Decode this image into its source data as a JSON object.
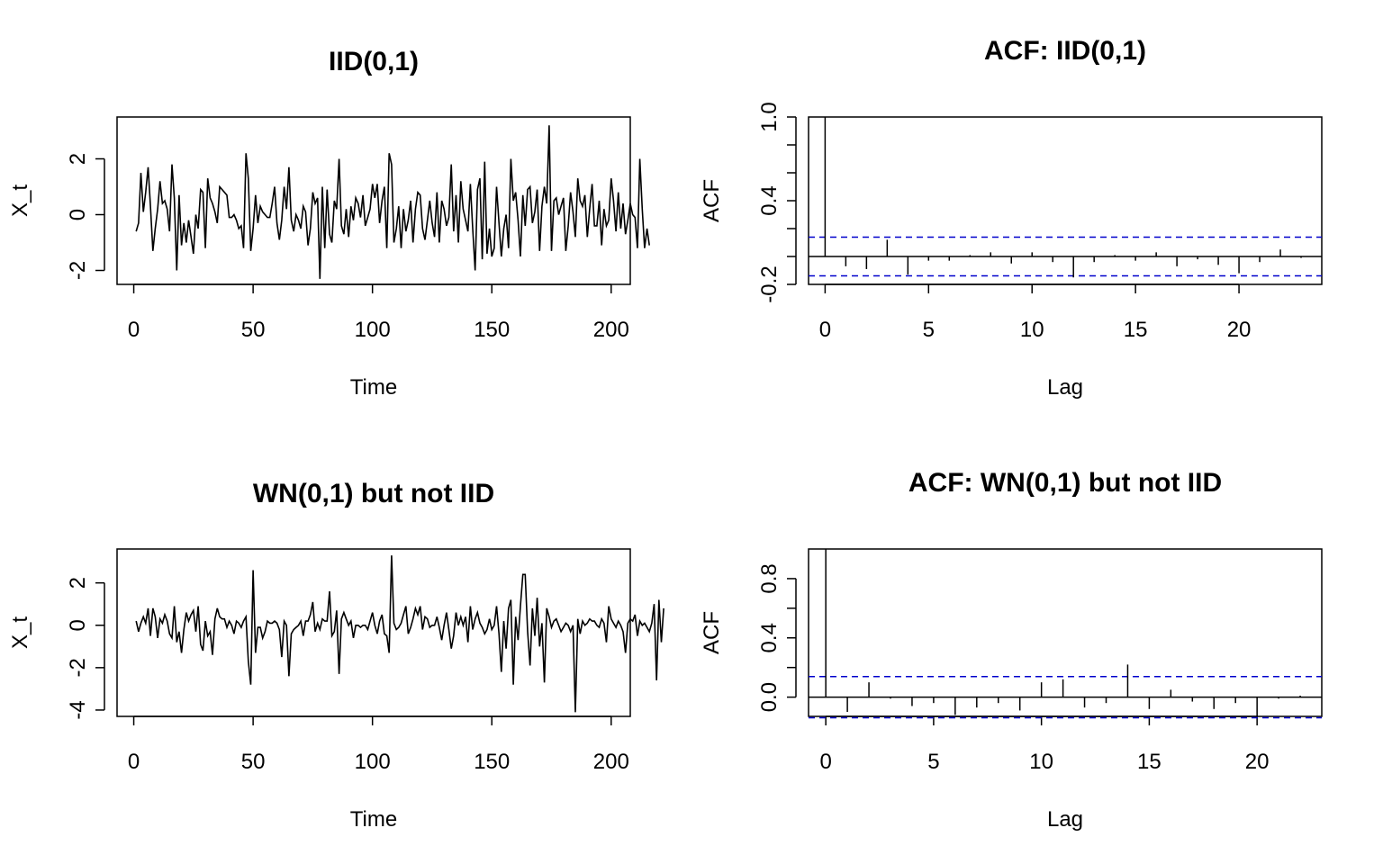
{
  "chart_data": [
    {
      "type": "line",
      "title": "IID(0,1)",
      "xlabel": "Time",
      "ylabel": "X_t",
      "xlim": [
        -7,
        208
      ],
      "ylim": [
        -2.5,
        3.5
      ],
      "xticks": [
        0,
        50,
        100,
        150,
        200
      ],
      "yticks": [
        -2,
        0,
        2
      ],
      "x_start": 1,
      "values": [
        -0.6,
        -0.3,
        1.5,
        0.1,
        0.8,
        1.7,
        0.3,
        -1.3,
        -0.5,
        0.2,
        1.2,
        0.4,
        0.5,
        0.2,
        -0.6,
        1.8,
        0.6,
        -2.0,
        0.7,
        -1.1,
        -0.3,
        -1.0,
        -0.2,
        -0.8,
        -1.4,
        0.0,
        -0.5,
        0.9,
        0.8,
        -1.2,
        1.3,
        0.6,
        0.4,
        0.1,
        -0.3,
        1.0,
        0.9,
        0.8,
        0.7,
        -0.1,
        -0.1,
        0.0,
        -0.2,
        -0.5,
        -0.4,
        -1.2,
        2.2,
        1.3,
        -1.3,
        -0.5,
        0.7,
        -0.3,
        0.3,
        0.1,
        0.0,
        -0.1,
        -0.1,
        0.4,
        1.0,
        -0.3,
        -0.9,
        -0.2,
        1.0,
        0.2,
        1.7,
        -0.2,
        -0.6,
        0.0,
        -0.2,
        -0.5,
        0.3,
        0.1,
        -1.1,
        -0.5,
        0.8,
        0.4,
        0.6,
        -2.3,
        1.0,
        -1.2,
        0.9,
        -0.7,
        -1.0,
        0.5,
        0.2,
        2.0,
        -0.4,
        -0.7,
        0.2,
        -0.8,
        0.3,
        -0.2,
        0.6,
        0.4,
        -0.1,
        0.7,
        -0.4,
        -0.1,
        0.2,
        1.1,
        0.6,
        1.1,
        -0.3,
        0.5,
        1.0,
        -1.2,
        2.2,
        1.8,
        -1.0,
        -0.5,
        0.3,
        -1.2,
        0.2,
        -0.6,
        -0.2,
        0.5,
        -1.0,
        0.2,
        0.8,
        0.7,
        -0.5,
        -0.9,
        -0.2,
        0.5,
        -0.3,
        -0.8,
        0.8,
        -1.0,
        0.5,
        0.2,
        -0.4,
        -0.1,
        1.8,
        -0.6,
        0.7,
        -1.0,
        1.2,
        0.2,
        -0.2,
        -0.6,
        1.1,
        -0.5,
        -2.0,
        0.9,
        1.3,
        -1.6,
        1.9,
        -1.4,
        -0.5,
        -1.5,
        -1.2,
        1.0,
        -0.3,
        -1.5,
        -0.5,
        0.0,
        -1.2,
        2.0,
        0.5,
        0.8,
        -0.2,
        -1.5,
        0.7,
        -0.4,
        0.9,
        1.0,
        -0.3,
        0.1,
        0.9,
        -1.3,
        0.3,
        1.0,
        0.4,
        3.2,
        -1.3,
        0.5,
        0.6,
        0.0,
        0.3,
        0.6,
        -1.3,
        -0.4,
        0.8,
        0.1,
        -0.8,
        1.3,
        0.5,
        0.3,
        0.7,
        -0.8,
        0.2,
        1.1,
        -0.4,
        -0.4,
        0.5,
        -1.1,
        0.2,
        -0.4,
        -0.2,
        1.3,
        0.5,
        -0.6,
        0.8,
        -0.5,
        0.4,
        -0.7,
        -0.2,
        0.4,
        0.0,
        -0.1,
        -1.2,
        2.0,
        0.2,
        -1.2,
        -0.5,
        -1.1
      ],
      "series_color": "#000000"
    },
    {
      "type": "bar",
      "title": "ACF: IID(0,1)",
      "xlabel": "Lag",
      "ylabel": "ACF",
      "xlim": [
        -0.8,
        24
      ],
      "ylim": [
        -0.2,
        1.0
      ],
      "xticks": [
        0,
        5,
        10,
        15,
        20
      ],
      "yticks": [
        -0.2,
        0.0,
        0.2,
        0.4,
        0.6,
        0.8,
        1.0
      ],
      "ytick_labels": [
        "-0.2",
        "",
        "",
        "0.4",
        "",
        "",
        "1.0"
      ],
      "lags": [
        0,
        1,
        2,
        3,
        4,
        5,
        6,
        7,
        8,
        9,
        10,
        11,
        12,
        13,
        14,
        15,
        16,
        17,
        18,
        19,
        20,
        21,
        22,
        23
      ],
      "values": [
        1.0,
        -0.07,
        -0.09,
        0.12,
        -0.13,
        -0.03,
        -0.03,
        0.01,
        0.03,
        -0.05,
        0.03,
        -0.04,
        -0.15,
        -0.04,
        0.01,
        -0.03,
        0.03,
        -0.07,
        -0.02,
        -0.06,
        -0.12,
        -0.04,
        0.05,
        -0.01
      ],
      "ci": 0.139,
      "ci_color": "#0000CC"
    },
    {
      "type": "line",
      "title": "WN(0,1) but not IID",
      "xlabel": "Time",
      "ylabel": "X_t",
      "xlim": [
        -7,
        208
      ],
      "ylim": [
        -4.3,
        3.6
      ],
      "xticks": [
        0,
        50,
        100,
        150,
        200
      ],
      "yticks": [
        -4,
        -2,
        0,
        2
      ],
      "x_start": 1,
      "values": [
        0.2,
        -0.3,
        0.1,
        0.4,
        0.1,
        0.8,
        -0.5,
        0.8,
        0.4,
        -0.6,
        0.3,
        0.1,
        0.5,
        0.2,
        -0.4,
        -0.6,
        0.9,
        -0.8,
        -0.3,
        -1.3,
        -0.2,
        0.6,
        0.2,
        0.5,
        0.7,
        -0.3,
        0.9,
        -0.9,
        -1.2,
        0.2,
        -0.5,
        -0.3,
        -1.4,
        0.3,
        0.8,
        0.4,
        0.3,
        0.3,
        -0.1,
        0.2,
        0.0,
        -0.4,
        0.2,
        0.1,
        -0.1,
        0.2,
        0.4,
        -1.7,
        -2.8,
        2.6,
        -1.3,
        -0.1,
        -0.1,
        -0.6,
        -0.3,
        0.2,
        0.1,
        0.1,
        0.2,
        0.1,
        -0.2,
        -1.5,
        0.2,
        0.0,
        -2.4,
        -0.4,
        -0.2,
        -0.1,
        0.0,
        0.2,
        -0.5,
        0.2,
        0.2,
        0.5,
        1.1,
        -0.3,
        0.1,
        -0.2,
        0.3,
        0.2,
        0.2,
        1.6,
        -0.5,
        -0.3,
        0.7,
        -2.3,
        0.3,
        0.6,
        0.3,
        0.0,
        0.2,
        -0.6,
        0.0,
        0.0,
        -0.1,
        0.0,
        0.0,
        -0.2,
        0.2,
        0.6,
        0.0,
        -0.4,
        0.2,
        0.5,
        -0.4,
        -0.5,
        -1.3,
        3.3,
        0.1,
        -0.2,
        -0.1,
        0.1,
        0.5,
        0.9,
        -0.4,
        -0.1,
        0.3,
        0.8,
        0.5,
        0.9,
        -0.2,
        0.4,
        0.3,
        -0.1,
        0.0,
        0.0,
        0.4,
        -0.1,
        -0.7,
        0.0,
        0.6,
        -0.2,
        -1.1,
        -0.5,
        0.6,
        0.0,
        0.4,
        0.0,
        0.4,
        -0.8,
        0.9,
        -0.2,
        0.3,
        0.6,
        0.1,
        -0.1,
        -0.4,
        -0.2,
        0.3,
        -0.2,
        0.0,
        0.9,
        -0.4,
        -2.2,
        0.2,
        -1.1,
        0.8,
        1.2,
        -2.8,
        0.4,
        -0.7,
        0.9,
        2.4,
        2.4,
        -0.3,
        -1.9,
        0.8,
        -0.5,
        1.3,
        -1.0,
        0.1,
        -2.7,
        0.8,
        0.4,
        -0.1,
        0.2,
        0.3,
        0.0,
        -0.3,
        -0.1,
        0.1,
        0.0,
        -0.3,
        0.0,
        -4.1,
        0.3,
        -0.4,
        0.2,
        0.0,
        0.1,
        0.3,
        0.2,
        0.2,
        0.0,
        -0.1,
        0.3,
        0.1,
        -0.8,
        0.9,
        0.3,
        0.1,
        -0.1,
        0.2,
        0.0,
        -0.3,
        -1.3,
        0.1,
        0.3,
        0.2,
        0.5,
        -0.5,
        0.2,
        0.0,
        0.1,
        -0.1,
        -0.3,
        0.1,
        1.0,
        -2.6,
        1.2,
        -0.8,
        0.8
      ],
      "series_color": "#000000"
    },
    {
      "type": "bar",
      "title": "ACF: WN(0,1) but not IID",
      "xlabel": "Lag",
      "ylabel": "ACF",
      "xlim": [
        -0.8,
        23
      ],
      "ylim": [
        -0.13,
        1.0
      ],
      "xticks": [
        0,
        5,
        10,
        15,
        20
      ],
      "yticks": [
        0.0,
        0.2,
        0.4,
        0.6,
        0.8
      ],
      "ytick_labels": [
        "0.0",
        "",
        "0.4",
        "",
        "0.8"
      ],
      "lags": [
        0,
        1,
        2,
        3,
        4,
        5,
        6,
        7,
        8,
        9,
        10,
        11,
        12,
        13,
        14,
        15,
        16,
        17,
        18,
        19,
        20,
        21,
        22
      ],
      "values": [
        1.0,
        -0.1,
        0.1,
        -0.01,
        -0.06,
        -0.04,
        -0.12,
        -0.07,
        -0.04,
        -0.09,
        0.1,
        0.12,
        -0.07,
        -0.04,
        0.22,
        -0.08,
        0.05,
        -0.03,
        -0.08,
        -0.04,
        -0.13,
        -0.01,
        0.01
      ],
      "ci": 0.139,
      "ci_color": "#0000CC"
    }
  ]
}
